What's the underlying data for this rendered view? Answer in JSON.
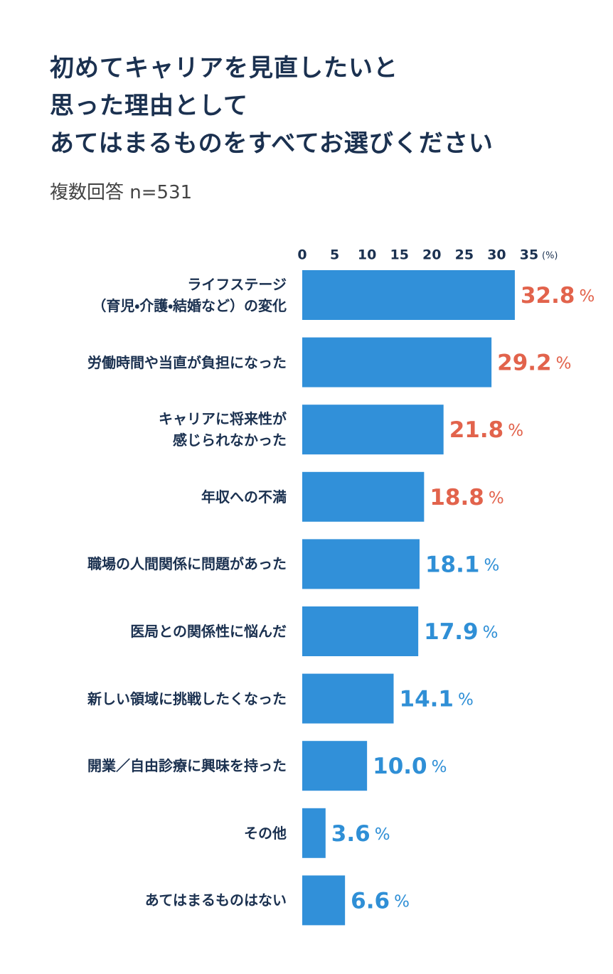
{
  "chart_data": {
    "type": "hbar",
    "title": "初めてキャリアを見直したいと\n思った理由として\nあてはまるものをすべてお選びください",
    "subtitle": "複数回答 n=531",
    "categories": [
      "ライフステージ\n（育児・介護・結婚など）の変化",
      "労働時間や当直が負担になった",
      "キャリアに将来性が\n感じられなかった",
      "年収への不満",
      "職場の人間関係に問題があった",
      "医局との関係性に悩んだ",
      "新しい領域に挑戦したくなった",
      "開業／自由診療に興味を持った",
      "その他",
      "あてはまるものはない"
    ],
    "values": [
      32.8,
      29.2,
      21.8,
      18.8,
      18.1,
      17.9,
      14.1,
      10.0,
      3.6,
      6.6
    ],
    "value_labels": [
      "32.8",
      "29.2",
      "21.8",
      "18.8",
      "18.1",
      "17.9",
      "14.1",
      "10.0",
      "3.6",
      "6.6"
    ],
    "value_unit": "%",
    "value_label_colors": [
      "#e2634c",
      "#e2634c",
      "#e2634c",
      "#e2634c",
      "#2f8fd6",
      "#2f8fd6",
      "#2f8fd6",
      "#2f8fd6",
      "#2f8fd6",
      "#2f8fd6"
    ],
    "color": "#3190d9",
    "xlim": [
      0,
      35
    ],
    "xticks": [
      0,
      5,
      10,
      15,
      20,
      25,
      30,
      35
    ],
    "axis_unit": "(%)"
  }
}
